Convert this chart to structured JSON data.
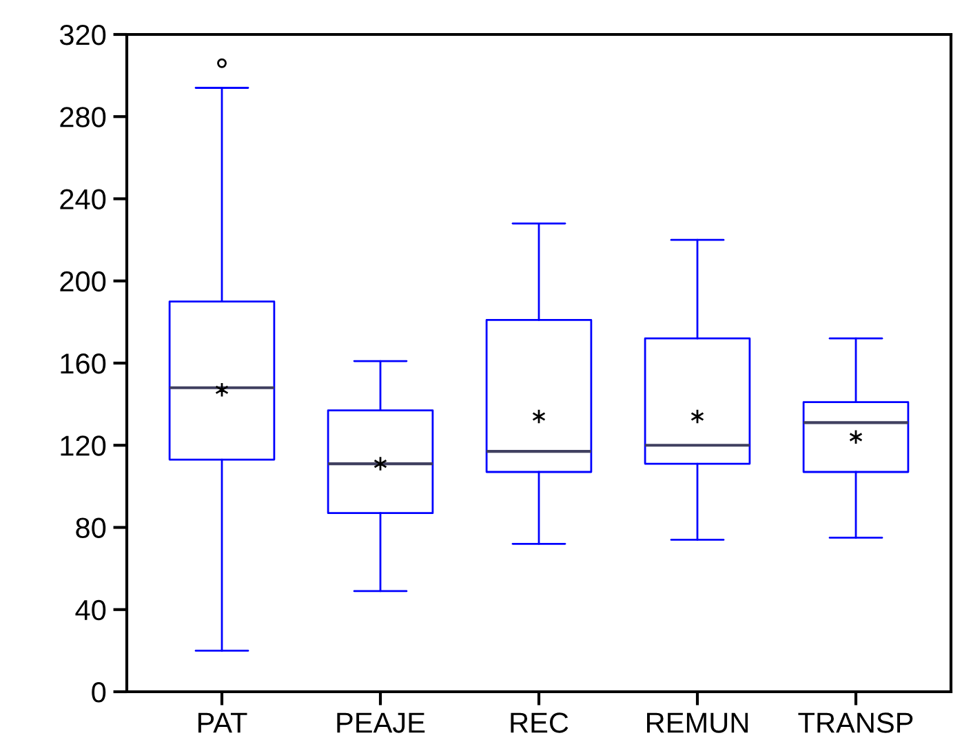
{
  "chart_data": {
    "type": "box",
    "categories": [
      "PAT",
      "PEAJE",
      "REC",
      "REMUN",
      "TRANSP"
    ],
    "series": [
      {
        "color": "#0000ff",
        "boxes": [
          {
            "low": 20,
            "q1": 113,
            "median": 148,
            "q3": 190,
            "high": 294,
            "mean": 147,
            "outliers": [
              306
            ]
          },
          {
            "low": 49,
            "q1": 87,
            "median": 111,
            "q3": 137,
            "high": 161,
            "mean": 111
          },
          {
            "low": 72,
            "q1": 107,
            "median": 117,
            "q3": 181,
            "high": 228,
            "mean": 134
          },
          {
            "low": 74,
            "q1": 111,
            "median": 120,
            "q3": 172,
            "high": 220,
            "mean": 134
          },
          {
            "low": 75,
            "q1": 107,
            "median": 131,
            "q3": 141,
            "high": 172,
            "mean": 124
          }
        ]
      }
    ],
    "ylim": [
      0,
      320
    ],
    "yticks": [
      0,
      40,
      80,
      120,
      160,
      200,
      240,
      280,
      320
    ],
    "grid": false
  }
}
